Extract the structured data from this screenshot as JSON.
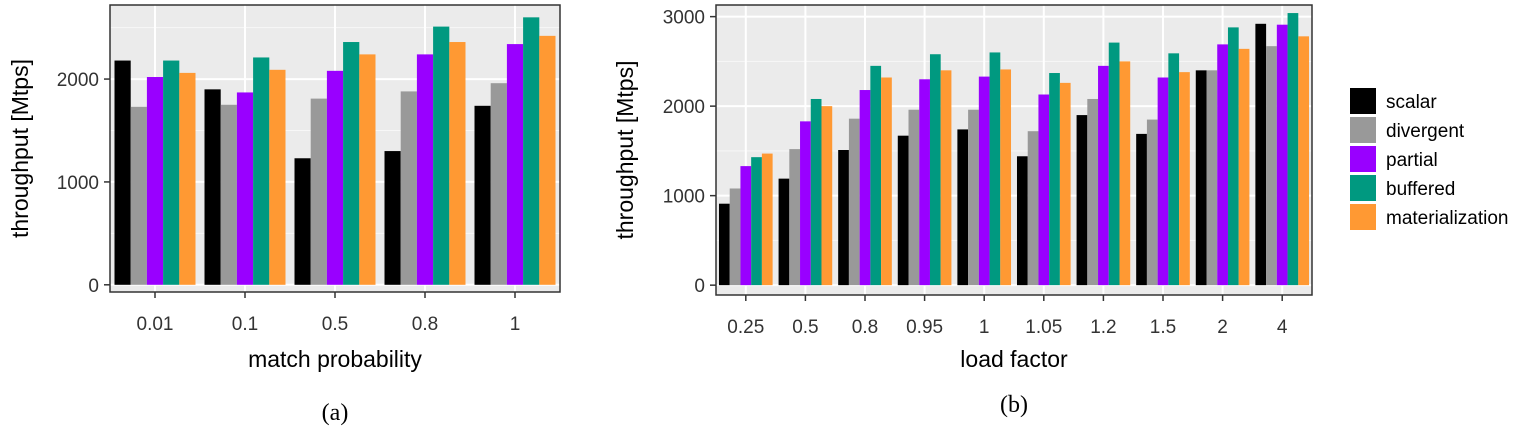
{
  "legend": {
    "items": [
      {
        "name": "scalar",
        "color": "#000000"
      },
      {
        "name": "divergent",
        "color": "#999999"
      },
      {
        "name": "partial",
        "color": "#9900ff"
      },
      {
        "name": "buffered",
        "color": "#009980"
      },
      {
        "name": "materialization",
        "color": "#ff9933"
      }
    ]
  },
  "chart_data": [
    {
      "type": "bar",
      "caption": "(a)",
      "xlabel": "match probability",
      "ylabel": "throughput [Mtps]",
      "categories": [
        "0.01",
        "0.1",
        "0.5",
        "0.8",
        "1"
      ],
      "ylim": [
        -70,
        2720
      ],
      "yticks": [
        0,
        1000,
        2000
      ],
      "grid": true,
      "series": [
        {
          "name": "scalar",
          "values": [
            2180,
            1900,
            1230,
            1300,
            1740
          ]
        },
        {
          "name": "divergent",
          "values": [
            1730,
            1750,
            1810,
            1880,
            1960
          ]
        },
        {
          "name": "partial",
          "values": [
            2020,
            1870,
            2080,
            2240,
            2340
          ]
        },
        {
          "name": "buffered",
          "values": [
            2180,
            2210,
            2360,
            2510,
            2600
          ]
        },
        {
          "name": "materialization",
          "values": [
            2060,
            2090,
            2240,
            2360,
            2420
          ]
        }
      ]
    },
    {
      "type": "bar",
      "caption": "(b)",
      "xlabel": "load factor",
      "ylabel": "throughput [Mtps]",
      "categories": [
        "0.25",
        "0.5",
        "0.8",
        "0.95",
        "1",
        "1.05",
        "1.2",
        "1.5",
        "2",
        "4"
      ],
      "ylim": [
        -110,
        3130
      ],
      "yticks": [
        0,
        1000,
        2000,
        3000
      ],
      "grid": true,
      "series": [
        {
          "name": "scalar",
          "values": [
            910,
            1190,
            1510,
            1670,
            1740,
            1440,
            1900,
            1690,
            2400,
            2920
          ]
        },
        {
          "name": "divergent",
          "values": [
            1080,
            1520,
            1860,
            1960,
            1960,
            1720,
            2080,
            1850,
            2400,
            2670
          ]
        },
        {
          "name": "partial",
          "values": [
            1330,
            1830,
            2180,
            2300,
            2330,
            2130,
            2450,
            2320,
            2690,
            2910
          ]
        },
        {
          "name": "buffered",
          "values": [
            1430,
            2080,
            2450,
            2580,
            2600,
            2370,
            2710,
            2590,
            2880,
            3040
          ]
        },
        {
          "name": "materialization",
          "values": [
            1470,
            2000,
            2320,
            2400,
            2410,
            2260,
            2500,
            2380,
            2640,
            2780
          ]
        }
      ]
    }
  ]
}
